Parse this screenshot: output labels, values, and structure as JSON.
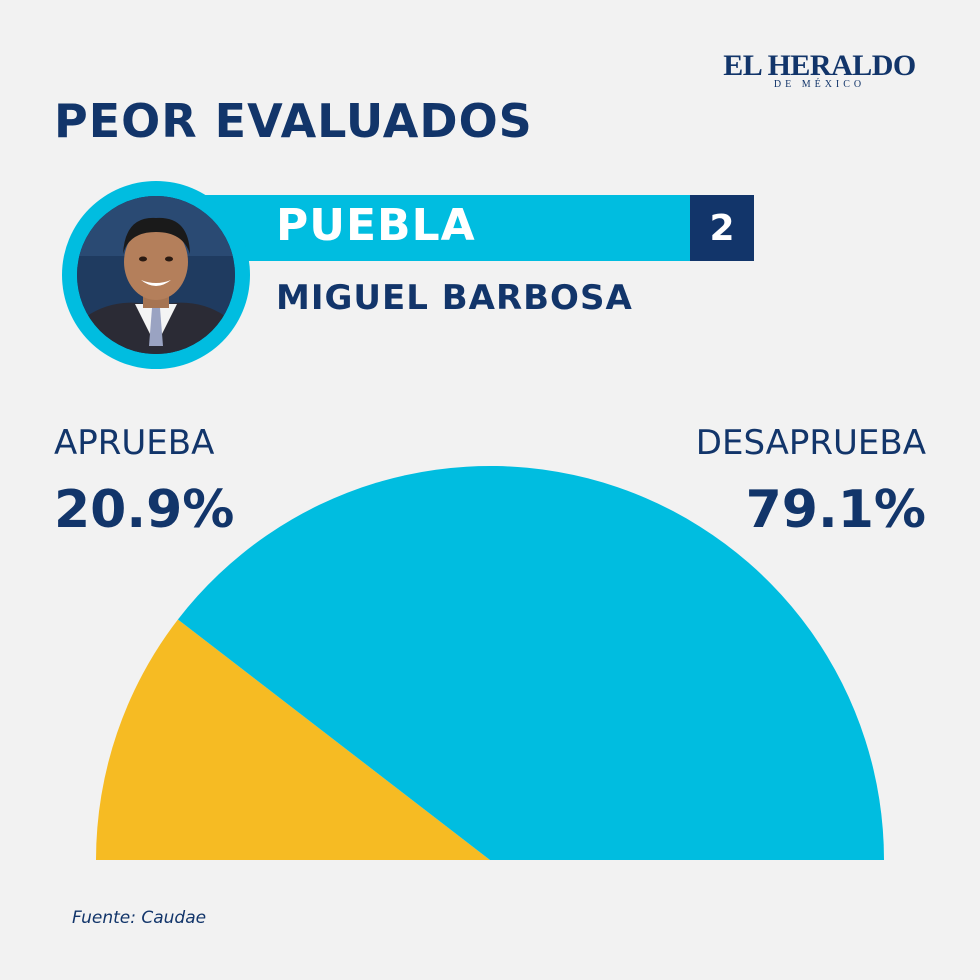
{
  "brand": {
    "name": "EL HERALDO",
    "subtitle": "DE MÉXICO"
  },
  "title": "PEOR EVALUADOS",
  "profile": {
    "state": "PUEBLA",
    "rank": "2",
    "name": "MIGUEL BARBOSA"
  },
  "labels": {
    "approve": "APRUEBA",
    "approve_value": "20.9%",
    "disapprove": "DESAPRUEBA",
    "disapprove_value": "79.1%"
  },
  "colors": {
    "approve": "#f6bb23",
    "disapprove": "#00bde0",
    "accent": "#12356a"
  },
  "chart_data": {
    "type": "pie",
    "shape": "half-donut (semicircle)",
    "categories": [
      "APRUEBA",
      "DESAPRUEBA"
    ],
    "values": [
      20.9,
      79.1
    ],
    "value_labels": [
      "20.9%",
      "79.1%"
    ]
  },
  "source": "Fuente: Caudae"
}
